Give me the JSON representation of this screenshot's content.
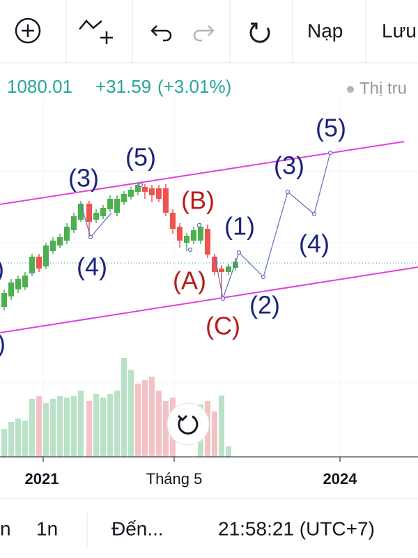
{
  "toolbar": {
    "buttons": [
      "Nạp",
      "Lưu"
    ]
  },
  "quote": {
    "price": "1080.01",
    "change": "+31.59",
    "change_percent": "(+3.01%)",
    "market_status": "Thị tru"
  },
  "chart": {
    "wave_labels": [
      ")",
      ")",
      "(3)",
      "(5)",
      "(4)",
      "(B)",
      "(1)",
      "(A)",
      "(4)",
      "(3)",
      "(5)",
      "(2)",
      "(C)"
    ],
    "x_axis_labels": [
      "2021",
      "Tháng 5",
      "2024"
    ]
  },
  "footer": {
    "intervals": [
      "n",
      "1n"
    ],
    "goto": "Đến...",
    "clock": "21:58:21 (UTC+7)"
  }
}
